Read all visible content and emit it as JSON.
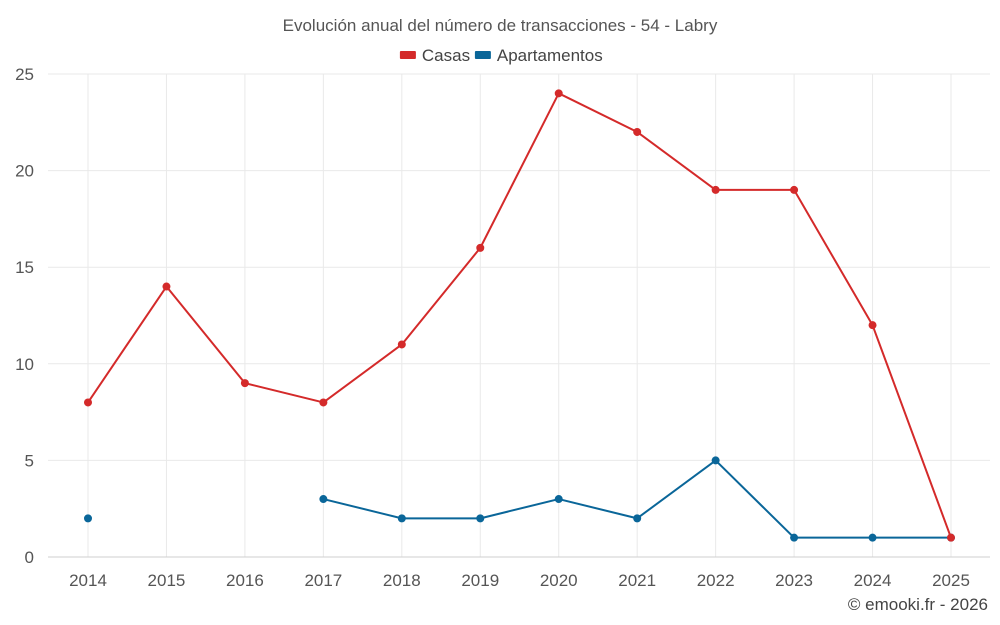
{
  "chart_data": {
    "type": "line",
    "title": "Evolución anual del número de transacciones - 54 - Labry",
    "xlabel": "",
    "ylabel": "",
    "categories": [
      "2014",
      "2015",
      "2016",
      "2017",
      "2018",
      "2019",
      "2020",
      "2021",
      "2022",
      "2023",
      "2024",
      "2025"
    ],
    "ylim": [
      0,
      25
    ],
    "yticks": [
      0,
      5,
      10,
      15,
      20,
      25
    ],
    "grid": true,
    "legend_position": "top-center",
    "series": [
      {
        "name": "Casas",
        "color": "#d42a2a",
        "values": [
          8,
          14,
          9,
          8,
          11,
          16,
          24,
          22,
          19,
          19,
          12,
          1
        ]
      },
      {
        "name": "Apartamentos",
        "color": "#0a6699",
        "values": [
          2,
          null,
          null,
          3,
          2,
          2,
          3,
          2,
          5,
          1,
          1,
          1
        ]
      }
    ]
  },
  "footer": {
    "copyright": "© emooki.fr - 2026"
  }
}
